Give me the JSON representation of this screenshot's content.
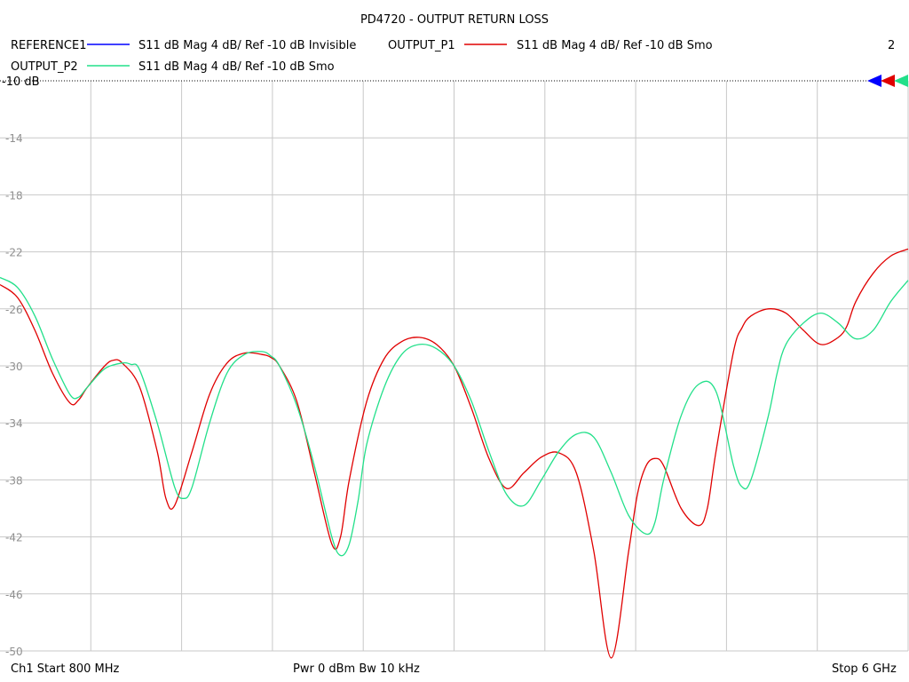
{
  "chart_data": {
    "type": "line",
    "title": "PD4720 - OUTPUT RETURN LOSS",
    "x_unit": "GHz",
    "xlim": [
      0.8,
      6.0
    ],
    "ylim": [
      -50,
      -10
    ],
    "y_ticks": [
      -10,
      -14,
      -18,
      -22,
      -26,
      -30,
      -34,
      -38,
      -42,
      -46,
      -50
    ],
    "y_tick_labels": [
      "-10",
      "-14",
      "-18",
      "-22",
      "-26",
      "-30",
      "-34",
      "-38",
      "-42",
      "-46",
      "-50"
    ],
    "ref_label": "-10 dB",
    "grid": true,
    "legend": [
      {
        "name": "REFERENCE1",
        "desc": "S11  dB Mag  4 dB/ Ref -10 dB  Invisible",
        "color": "#0000ff"
      },
      {
        "name": "OUTPUT_P1",
        "desc": "S11  dB Mag  4 dB/ Ref -10 dB  Smo",
        "color": "#e00000"
      },
      {
        "name": "OUTPUT_P2",
        "desc": "S11  dB Mag  4 dB/ Ref -10 dB  Smo",
        "color": "#22e08a"
      }
    ],
    "legend_count": "2",
    "series": [
      {
        "name": "OUTPUT_P1",
        "color": "#e00000",
        "x": [
          0.8,
          0.9,
          1.0,
          1.1,
          1.2,
          1.25,
          1.3,
          1.4,
          1.45,
          1.5,
          1.6,
          1.7,
          1.75,
          1.8,
          1.9,
          2.0,
          2.1,
          2.2,
          2.3,
          2.35,
          2.4,
          2.5,
          2.6,
          2.7,
          2.75,
          2.8,
          2.9,
          3.0,
          3.1,
          3.2,
          3.3,
          3.4,
          3.5,
          3.6,
          3.7,
          3.8,
          3.9,
          4.0,
          4.1,
          4.2,
          4.3,
          4.4,
          4.45,
          4.5,
          4.55,
          4.6,
          4.7,
          4.8,
          4.85,
          4.9,
          5.0,
          5.05,
          5.1,
          5.2,
          5.3,
          5.4,
          5.5,
          5.6,
          5.65,
          5.7,
          5.8,
          5.9,
          6.0
        ],
        "values": [
          -24.3,
          -25.2,
          -27.5,
          -30.5,
          -32.6,
          -32.4,
          -31.5,
          -30.0,
          -29.6,
          -29.8,
          -31.5,
          -36.0,
          -39.3,
          -39.8,
          -36.0,
          -32.0,
          -29.8,
          -29.1,
          -29.2,
          -29.4,
          -30.0,
          -32.5,
          -37.5,
          -42.5,
          -42.0,
          -38.0,
          -32.5,
          -29.5,
          -28.3,
          -28.0,
          -28.5,
          -30.0,
          -33.0,
          -36.5,
          -38.6,
          -37.5,
          -36.4,
          -36.1,
          -37.5,
          -43.0,
          -50.5,
          -43.0,
          -39.0,
          -37.0,
          -36.5,
          -37.0,
          -40.0,
          -41.2,
          -40.0,
          -36.0,
          -29.0,
          -27.3,
          -26.5,
          -26.0,
          -26.3,
          -27.5,
          -28.5,
          -28.0,
          -27.2,
          -25.5,
          -23.5,
          -22.3,
          -21.8
        ]
      },
      {
        "name": "OUTPUT_P2",
        "color": "#22e08a",
        "x": [
          0.8,
          0.9,
          1.0,
          1.1,
          1.2,
          1.25,
          1.3,
          1.4,
          1.5,
          1.55,
          1.6,
          1.7,
          1.8,
          1.85,
          1.9,
          2.0,
          2.1,
          2.2,
          2.3,
          2.35,
          2.4,
          2.5,
          2.6,
          2.7,
          2.75,
          2.8,
          2.85,
          2.9,
          3.0,
          3.1,
          3.2,
          3.3,
          3.4,
          3.5,
          3.6,
          3.7,
          3.8,
          3.9,
          4.0,
          4.1,
          4.2,
          4.3,
          4.4,
          4.5,
          4.55,
          4.6,
          4.7,
          4.8,
          4.9,
          5.0,
          5.05,
          5.1,
          5.2,
          5.25,
          5.3,
          5.4,
          5.5,
          5.6,
          5.7,
          5.8,
          5.9,
          6.0
        ],
        "values": [
          -23.8,
          -24.5,
          -26.5,
          -29.5,
          -32.0,
          -32.2,
          -31.5,
          -30.2,
          -29.8,
          -29.9,
          -30.3,
          -34.0,
          -38.5,
          -39.3,
          -38.5,
          -34.0,
          -30.5,
          -29.2,
          -29.0,
          -29.3,
          -30.0,
          -32.8,
          -37.0,
          -42.0,
          -43.3,
          -42.5,
          -39.5,
          -35.5,
          -31.5,
          -29.2,
          -28.5,
          -28.8,
          -30.0,
          -32.5,
          -36.0,
          -39.0,
          -39.8,
          -38.0,
          -36.0,
          -34.8,
          -35.0,
          -37.5,
          -40.5,
          -41.8,
          -41.0,
          -38.0,
          -33.5,
          -31.3,
          -31.8,
          -37.0,
          -38.5,
          -38.0,
          -33.5,
          -30.5,
          -28.5,
          -27.0,
          -26.3,
          -27.0,
          -28.1,
          -27.5,
          -25.5,
          -24.0
        ]
      }
    ]
  },
  "footer": {
    "start": "Ch1  Start  800 MHz",
    "power": "Pwr  0 dBm  Bw  10 kHz",
    "stop": "Stop  6 GHz"
  }
}
